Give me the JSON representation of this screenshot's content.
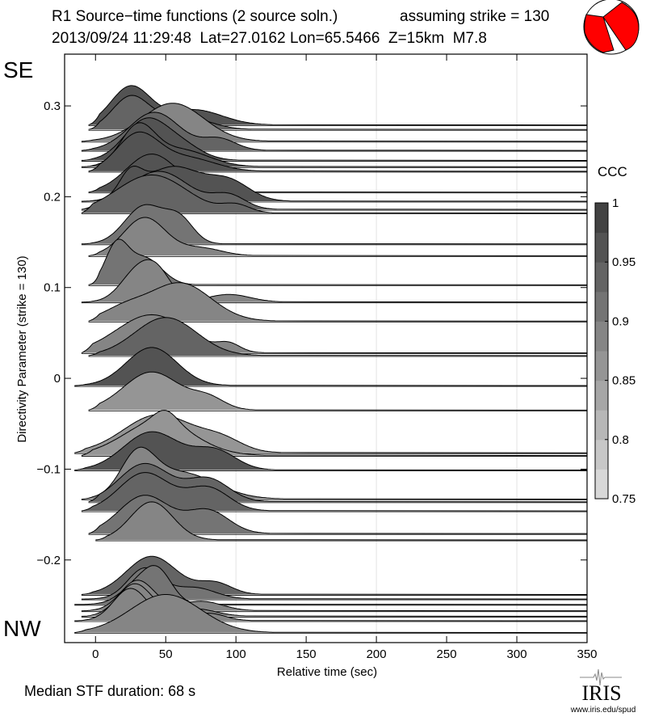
{
  "header": {
    "title": "R1 Source−time functions (2 source soln.)",
    "strike_note": "assuming strike = 130",
    "event_line": "2013/09/24 11:29:48  Lat=27.0162 Lon=65.5466  Z=15km  M7.8",
    "beachball_icon": "focal-mechanism-beachball"
  },
  "labels": {
    "top_direction": "SE",
    "bottom_direction": "NW",
    "median": "Median STF duration: 68 s",
    "logo_text": "IRIS",
    "logo_url": "www.iris.edu/spud"
  },
  "colors": {
    "beachball": "#ff0000",
    "ccc_low": "#e0e0e0",
    "ccc_high": "#3a3a3a"
  },
  "chart_data": {
    "type": "line",
    "title": "R1 Source−time functions (2 source soln.)",
    "xlabel": "Relative time (sec)",
    "ylabel": "Directivity Parameter (strike = 130)",
    "xlim": [
      -22,
      350
    ],
    "ylim": [
      -0.291,
      0.357
    ],
    "xticks": [
      0,
      50,
      100,
      150,
      200,
      250,
      300,
      350
    ],
    "xtick_labels": [
      "0",
      "50",
      "100",
      "150",
      "200",
      "250",
      "300",
      "350"
    ],
    "yticks": [
      0.3,
      0.2,
      0.1,
      0,
      -0.1,
      -0.2
    ],
    "ytick_labels": [
      "0.3",
      "0.2",
      "0.1",
      "0",
      "−0.1",
      "−0.2"
    ],
    "grid_x": [
      100,
      200,
      300
    ],
    "amplitude_scale": 0.042,
    "colorbar": {
      "label": "CCC",
      "range": [
        0.75,
        1
      ],
      "ticks": [
        1,
        0.95,
        0.9,
        0.85,
        0.8,
        0.75
      ],
      "tick_labels": [
        "1",
        "0.95",
        "0.9",
        "0.85",
        "0.8",
        "0.75"
      ],
      "bins": 10
    },
    "traces": [
      {
        "d": 0.279,
        "start": -5,
        "ccc": 0.96,
        "pulses": [
          [
            25,
            14,
            1.0
          ],
          [
            70,
            20,
            0.4
          ]
        ]
      },
      {
        "d": 0.274,
        "start": -5,
        "ccc": 0.95,
        "pulses": [
          [
            25,
            13,
            0.85
          ],
          [
            62,
            18,
            0.35
          ]
        ]
      },
      {
        "d": 0.261,
        "start": -10,
        "ccc": 0.88,
        "pulses": [
          [
            55,
            22,
            1.0
          ]
        ]
      },
      {
        "d": 0.251,
        "start": -10,
        "ccc": 0.95,
        "pulses": [
          [
            42,
            18,
            1.0
          ],
          [
            88,
            12,
            0.3
          ]
        ]
      },
      {
        "d": 0.24,
        "start": -10,
        "ccc": 0.96,
        "pulses": [
          [
            35,
            15,
            1.0
          ],
          [
            60,
            15,
            0.4
          ]
        ]
      },
      {
        "d": 0.233,
        "start": -10,
        "ccc": 0.97,
        "pulses": [
          [
            30,
            12,
            1.0
          ],
          [
            60,
            20,
            0.45
          ]
        ]
      },
      {
        "d": 0.228,
        "start": -5,
        "ccc": 0.97,
        "pulses": [
          [
            30,
            15,
            0.95
          ],
          [
            65,
            20,
            0.35
          ]
        ]
      },
      {
        "d": 0.205,
        "start": -5,
        "ccc": 0.96,
        "pulses": [
          [
            40,
            18,
            1.0
          ],
          [
            80,
            10,
            0.2
          ]
        ]
      },
      {
        "d": 0.195,
        "start": -10,
        "ccc": 0.96,
        "pulses": [
          [
            25,
            8,
            0.6
          ],
          [
            55,
            20,
            0.9
          ],
          [
            95,
            15,
            0.5
          ]
        ]
      },
      {
        "d": 0.186,
        "start": -10,
        "ccc": 0.95,
        "pulses": [
          [
            45,
            22,
            1.0
          ],
          [
            95,
            12,
            0.35
          ]
        ]
      },
      {
        "d": 0.182,
        "start": -10,
        "ccc": 0.95,
        "pulses": [
          [
            40,
            25,
            1.0
          ],
          [
            100,
            10,
            0.2
          ]
        ]
      },
      {
        "d": 0.148,
        "start": -10,
        "ccc": 0.9,
        "pulses": [
          [
            35,
            14,
            1.0
          ],
          [
            60,
            10,
            0.6
          ]
        ]
      },
      {
        "d": 0.135,
        "start": -5,
        "ccc": 0.88,
        "pulses": [
          [
            35,
            15,
            1.0
          ],
          [
            75,
            15,
            0.2
          ]
        ]
      },
      {
        "d": 0.103,
        "start": -5,
        "ccc": 0.92,
        "pulses": [
          [
            15,
            8,
            1.0
          ],
          [
            35,
            12,
            0.7
          ]
        ]
      },
      {
        "d": 0.084,
        "start": -10,
        "ccc": 0.88,
        "pulses": [
          [
            30,
            12,
            0.8
          ],
          [
            45,
            10,
            0.6
          ],
          [
            95,
            15,
            0.2
          ]
        ]
      },
      {
        "d": 0.063,
        "start": -5,
        "ccc": 0.88,
        "pulses": [
          [
            60,
            22,
            1.0
          ],
          [
            20,
            15,
            0.3
          ]
        ]
      },
      {
        "d": 0.028,
        "start": -10,
        "ccc": 0.88,
        "pulses": [
          [
            40,
            25,
            1.0
          ],
          [
            95,
            8,
            0.2
          ]
        ]
      },
      {
        "d": 0.025,
        "start": -5,
        "ccc": 0.94,
        "pulses": [
          [
            50,
            22,
            1.0
          ]
        ]
      },
      {
        "d": -0.008,
        "start": -15,
        "ccc": 0.97,
        "pulses": [
          [
            40,
            18,
            1.0
          ]
        ]
      },
      {
        "d": -0.035,
        "start": -5,
        "ccc": 0.87,
        "pulses": [
          [
            40,
            20,
            1.0
          ],
          [
            80,
            12,
            0.3
          ]
        ]
      },
      {
        "d": -0.082,
        "start": -15,
        "ccc": 0.87,
        "pulses": [
          [
            45,
            25,
            1.0
          ],
          [
            90,
            15,
            0.3
          ]
        ]
      },
      {
        "d": -0.085,
        "start": -10,
        "ccc": 0.87,
        "pulses": [
          [
            50,
            8,
            0.3
          ],
          [
            45,
            25,
            0.9
          ]
        ]
      },
      {
        "d": -0.101,
        "start": -15,
        "ccc": 0.97,
        "pulses": [
          [
            40,
            20,
            1.0
          ],
          [
            85,
            15,
            0.5
          ]
        ]
      },
      {
        "d": -0.133,
        "start": -10,
        "ccc": 0.88,
        "pulses": [
          [
            30,
            12,
            1.0
          ],
          [
            60,
            25,
            0.7
          ]
        ]
      },
      {
        "d": -0.136,
        "start": -5,
        "ccc": 0.95,
        "pulses": [
          [
            35,
            18,
            1.0
          ],
          [
            80,
            15,
            0.6
          ]
        ]
      },
      {
        "d": -0.146,
        "start": -10,
        "ccc": 0.95,
        "pulses": [
          [
            35,
            18,
            1.0
          ],
          [
            80,
            15,
            0.6
          ]
        ]
      },
      {
        "d": -0.171,
        "start": -5,
        "ccc": 0.9,
        "pulses": [
          [
            35,
            18,
            1.0
          ],
          [
            80,
            15,
            0.6
          ]
        ]
      },
      {
        "d": -0.178,
        "start": 0,
        "ccc": 0.88,
        "pulses": [
          [
            40,
            15,
            1.0
          ]
        ]
      },
      {
        "d": -0.238,
        "start": -10,
        "ccc": 0.95,
        "pulses": [
          [
            40,
            18,
            1.0
          ],
          [
            85,
            12,
            0.3
          ]
        ]
      },
      {
        "d": -0.243,
        "start": -10,
        "ccc": 0.9,
        "pulses": [
          [
            35,
            12,
            0.8
          ],
          [
            70,
            15,
            0.3
          ]
        ]
      },
      {
        "d": -0.249,
        "start": -15,
        "ccc": 0.9,
        "pulses": [
          [
            45,
            10,
            0.75
          ],
          [
            30,
            12,
            0.5
          ]
        ]
      },
      {
        "d": -0.256,
        "start": -10,
        "ccc": 0.88,
        "pulses": [
          [
            30,
            12,
            0.8
          ],
          [
            75,
            15,
            0.25
          ]
        ]
      },
      {
        "d": -0.262,
        "start": -10,
        "ccc": 0.88,
        "pulses": [
          [
            28,
            12,
            0.85
          ],
          [
            70,
            15,
            0.2
          ]
        ]
      },
      {
        "d": -0.267,
        "start": -15,
        "ccc": 0.88,
        "pulses": [
          [
            25,
            12,
            0.85
          ],
          [
            80,
            12,
            0.2
          ]
        ]
      },
      {
        "d": -0.28,
        "start": -15,
        "ccc": 0.89,
        "pulses": [
          [
            50,
            25,
            1.0
          ]
        ]
      }
    ]
  }
}
